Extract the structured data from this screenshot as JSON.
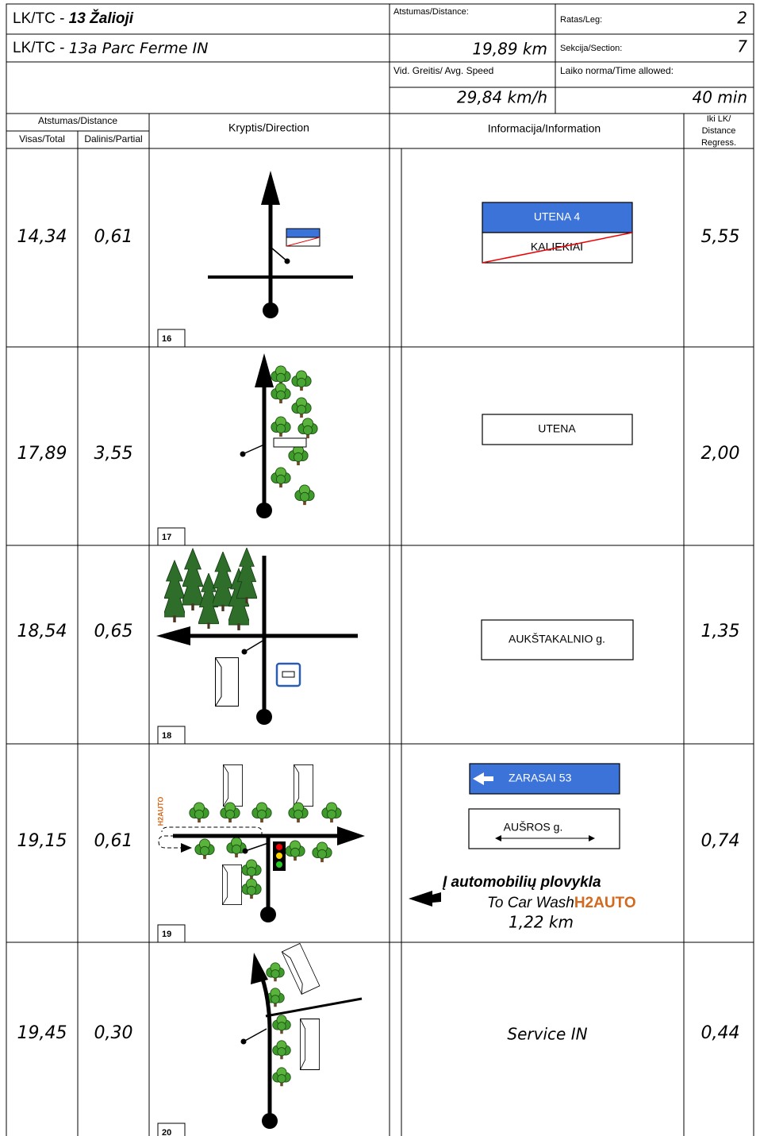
{
  "header": {
    "row1_prefix": "LK/TC - ",
    "row1_name": "13 Žalioji",
    "row2_prefix": "LK/TC - ",
    "row2_name": "13a Parc Ferme IN",
    "distance_label": "Atstumas/Distance:",
    "distance_value": "19,89 km",
    "leg_label": "Ratas/Leg:",
    "leg_value": "2",
    "section_label": "Sekcija/Section:",
    "section_value": "7",
    "speed_label": "Vid. Greitis/ Avg. Speed",
    "speed_value": "29,84 km/h",
    "time_label": "Laiko norma/Time allowed:",
    "time_value": "40 min"
  },
  "columns": {
    "distance": "Atstumas/Distance",
    "total": "Visas/Total",
    "partial": "Dalinis/Partial",
    "direction": "Kryptis/Direction",
    "information": "Informacija/Information",
    "regress": [
      "Iki LK/",
      "Distance",
      "Regress."
    ]
  },
  "rows": [
    {
      "total": "14,34",
      "partial": "0,61",
      "number": "16",
      "info": [
        "UTENA 4",
        "KALIEKIAI"
      ],
      "regress": "5,55"
    },
    {
      "total": "17,89",
      "partial": "3,55",
      "number": "17",
      "info": [
        "UTENA"
      ],
      "regress": "2,00"
    },
    {
      "total": "18,54",
      "partial": "0,65",
      "number": "18",
      "info": [
        "AUKŠTAKALNIO g."
      ],
      "regress": "1,35"
    },
    {
      "total": "19,15",
      "partial": "0,61",
      "number": "19",
      "diagram_label": "H2AUTO",
      "info": [
        "ZARASAI 53",
        "AUŠROS g.",
        "Į automobilių plovykla",
        "To Car Wash",
        "H2AUTO",
        "1,22 km"
      ],
      "regress": "0,74"
    },
    {
      "total": "19,45",
      "partial": "0,30",
      "number": "20",
      "info": [
        "Service IN"
      ],
      "regress": "0,44"
    }
  ]
}
